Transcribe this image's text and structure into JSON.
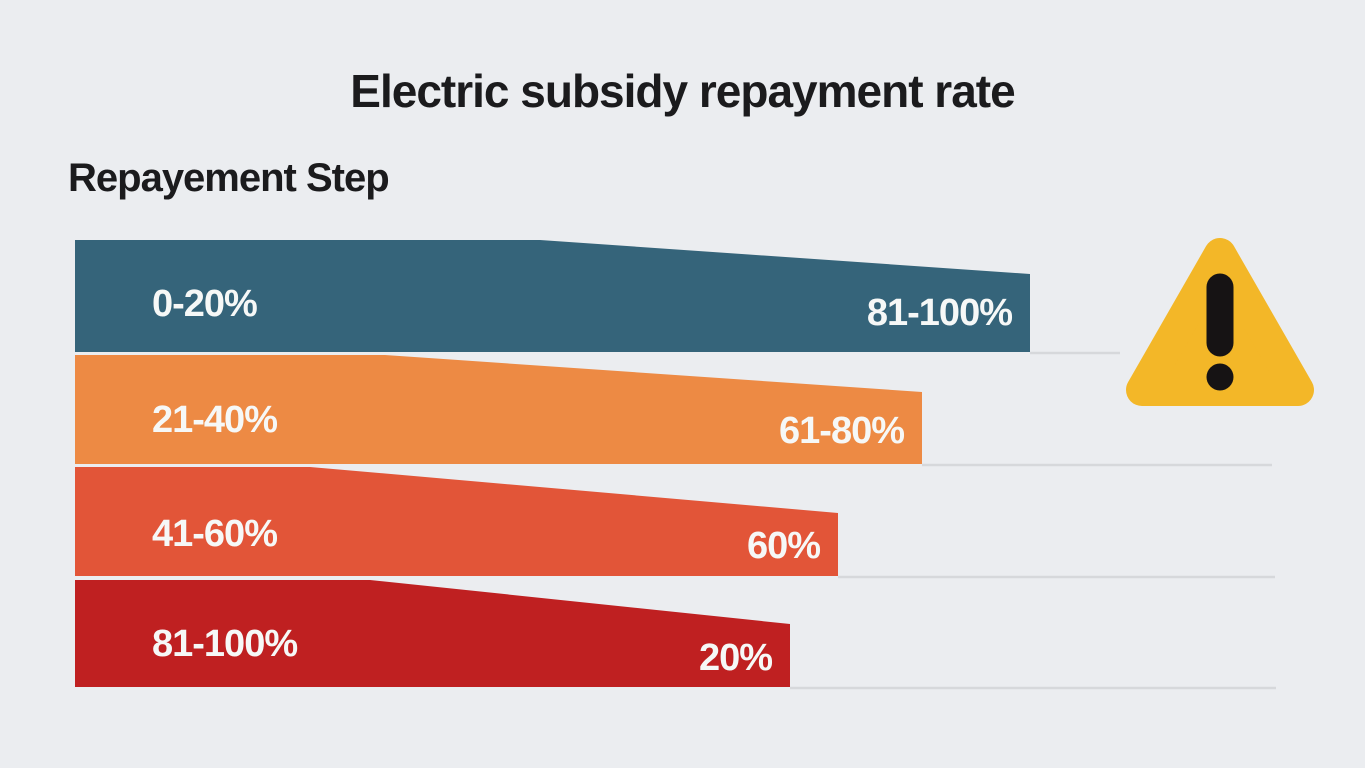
{
  "title": "Electric subsidy repayment rate",
  "subtitle": "Repayement Step",
  "colors": {
    "background": "#ebedf0",
    "title_text": "#1b1b1d",
    "bar_label_text": "#f6f8f7",
    "gridline": "#d6d8db",
    "warning_triangle_fill": "#f3b728",
    "warning_mark": "#161314"
  },
  "warning_icon": {
    "name": "warning-triangle-icon",
    "glyph": "!"
  },
  "chart_data": {
    "type": "bar",
    "orientation": "horizontal",
    "title": "Electric subsidy repayment rate",
    "axis_label": "Repayement Step",
    "categories": [
      "0-20%",
      "21-40%",
      "41-60%",
      "81-100%"
    ],
    "series": [
      {
        "name": "Repayment rate",
        "values": [
          "81-100%",
          "61-80%",
          "60%",
          "20%"
        ]
      }
    ],
    "bars": [
      {
        "category": "0-20%",
        "value": "81-100%",
        "length_pct": 100,
        "color": "#35647a"
      },
      {
        "category": "21-40%",
        "value": "61-80%",
        "length_pct": 89,
        "color": "#ed8a44"
      },
      {
        "category": "41-60%",
        "value": "60%",
        "length_pct": 80,
        "color": "#e25538"
      },
      {
        "category": "81-100%",
        "value": "20%",
        "length_pct": 75,
        "color": "#bf2021"
      }
    ],
    "legend": null,
    "grid": "baseline-only"
  }
}
